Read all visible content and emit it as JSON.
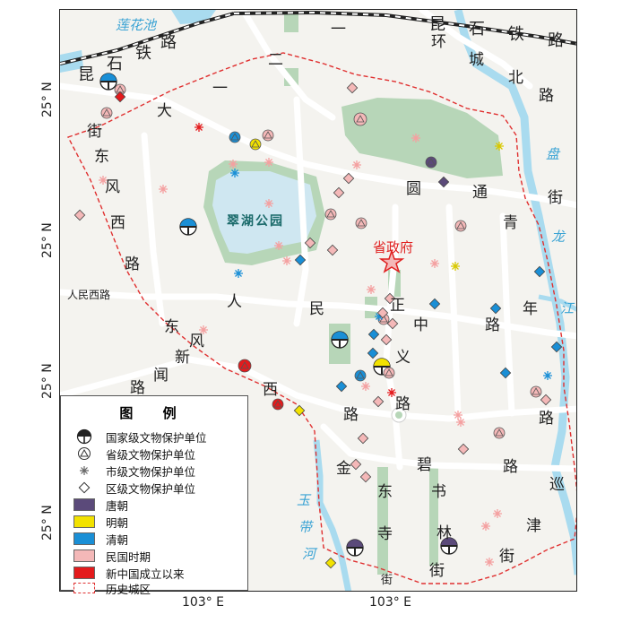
{
  "axis": {
    "lon_left": "103° E",
    "lon_right": "103° E",
    "lat_1": "25° N",
    "lat_2": "25° N",
    "lat_3": "25° N",
    "lat_4": "25° N"
  },
  "map": {
    "landmarks": {
      "park": "翠湖公园",
      "gov": "省政府",
      "lotus_pond": "莲花池",
      "river_panlong": [
        "盘",
        "龙",
        "江"
      ],
      "river_yudai": [
        "玉",
        "带",
        "河"
      ]
    },
    "railway": {
      "label_left": [
        "昆",
        "石",
        "铁",
        "路"
      ],
      "label_right": [
        "昆",
        "石",
        "铁",
        "路"
      ]
    },
    "roads": {
      "yi_er_yi": [
        "一",
        "二",
        "一",
        "大",
        "街"
      ],
      "huancheng_bei": [
        "环",
        "城",
        "北",
        "路"
      ],
      "dongfeng_xi": [
        "东",
        "风",
        "西",
        "路"
      ],
      "yuantong": [
        "圆",
        "通",
        "街"
      ],
      "qingnian": [
        "青",
        "年",
        "路"
      ],
      "renmin_xi": "人民西路",
      "renmin": [
        "人",
        "民",
        "中",
        "路"
      ],
      "zhengyi": [
        "正",
        "义",
        "路"
      ],
      "dongfeng_dong": [
        "东",
        "风"
      ],
      "xinwen": [
        "新",
        "闻",
        "路"
      ],
      "xi": [
        "西",
        "路"
      ],
      "jinbi": [
        "金",
        "碧",
        "路"
      ],
      "dongsi": [
        "东",
        "寺",
        "街"
      ],
      "shulin": [
        "书",
        "林",
        "街"
      ],
      "xunjin": [
        "巡",
        "津",
        "街"
      ]
    }
  },
  "colors": {
    "tang": "#5b4a7a",
    "ming": "#f2e200",
    "qing": "#1a8fd6",
    "minguo": "#f4b8b8",
    "new_china": "#e41a1c",
    "boundary": "#e03030",
    "water": "#a9dbef",
    "park": "#b7d6b8",
    "lake": "#cfe7f1",
    "road": "#ffffff",
    "background": "#f4f3ef"
  },
  "legend": {
    "title": "图 例",
    "items": [
      {
        "icon": "national-heritage-icon",
        "label": "国家级文物保护单位"
      },
      {
        "icon": "provincial-heritage-icon",
        "label": "省级文物保护单位"
      },
      {
        "icon": "municipal-heritage-icon",
        "label": "市级文物保护单位"
      },
      {
        "icon": "district-heritage-icon",
        "label": "区级文物保护单位"
      },
      {
        "icon": "tang-swatch",
        "label": "唐朝",
        "color": "#5b4a7a"
      },
      {
        "icon": "ming-swatch",
        "label": "明朝",
        "color": "#f2e200"
      },
      {
        "icon": "qing-swatch",
        "label": "清朝",
        "color": "#1a8fd6"
      },
      {
        "icon": "minguo-swatch",
        "label": "民国时期",
        "color": "#f4b8b8"
      },
      {
        "icon": "newchina-swatch",
        "label": "新中国成立以来",
        "color": "#e41a1c"
      },
      {
        "icon": "boundary-line",
        "label": "历史城区"
      }
    ]
  }
}
